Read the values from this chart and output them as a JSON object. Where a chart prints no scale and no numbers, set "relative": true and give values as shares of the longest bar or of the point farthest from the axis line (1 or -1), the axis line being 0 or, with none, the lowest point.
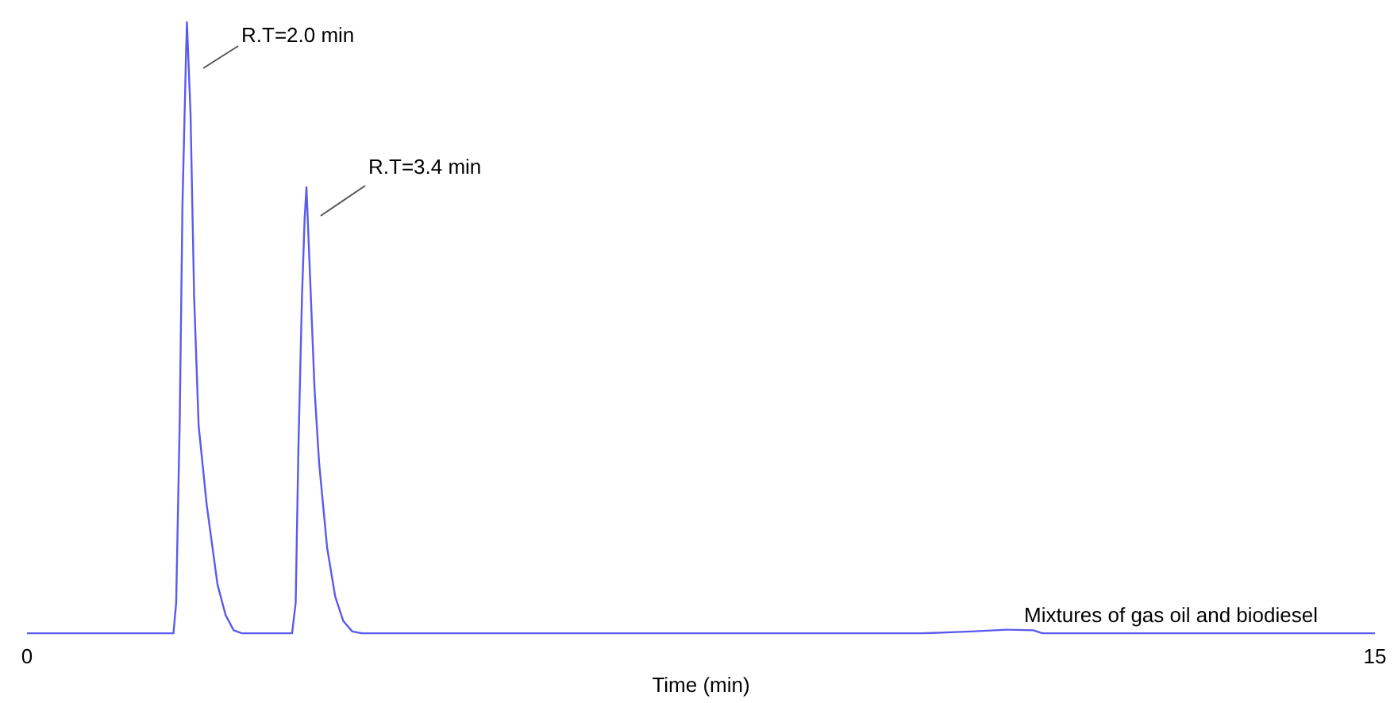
{
  "chart_data": {
    "type": "line",
    "xlabel": "Time (min)",
    "relative": true,
    "xlim": [
      0,
      15
    ],
    "xticks": [
      0,
      15
    ],
    "grid": false,
    "marker": "none",
    "line_style": "solid",
    "series": [
      {
        "color": "#5a5af0",
        "x": [
          0,
          1.63,
          1.66,
          1.7,
          1.73,
          1.77,
          1.78,
          1.82,
          1.86,
          1.91,
          2.0,
          2.12,
          2.21,
          2.3,
          2.39,
          2.95,
          2.99,
          3.02,
          3.06,
          3.09,
          3.11,
          3.14,
          3.2,
          3.25,
          3.34,
          3.43,
          3.52,
          3.62,
          3.73,
          9.95,
          10.5,
          10.9,
          11.2,
          11.3,
          15
        ],
        "values": [
          0,
          0,
          0.05,
          0.35,
          0.7,
          0.95,
          1,
          0.85,
          0.55,
          0.34,
          0.21,
          0.08,
          0.03,
          0.005,
          0,
          0,
          0.05,
          0.3,
          0.55,
          0.68,
          0.73,
          0.62,
          0.4,
          0.28,
          0.14,
          0.06,
          0.02,
          0.003,
          0,
          0,
          0.003,
          0.006,
          0.005,
          0,
          0
        ]
      }
    ],
    "annotations": [
      "R.T=2.0 min",
      "R.T=3.4 min",
      "Mixtures of gas oil and biodiesel"
    ]
  }
}
